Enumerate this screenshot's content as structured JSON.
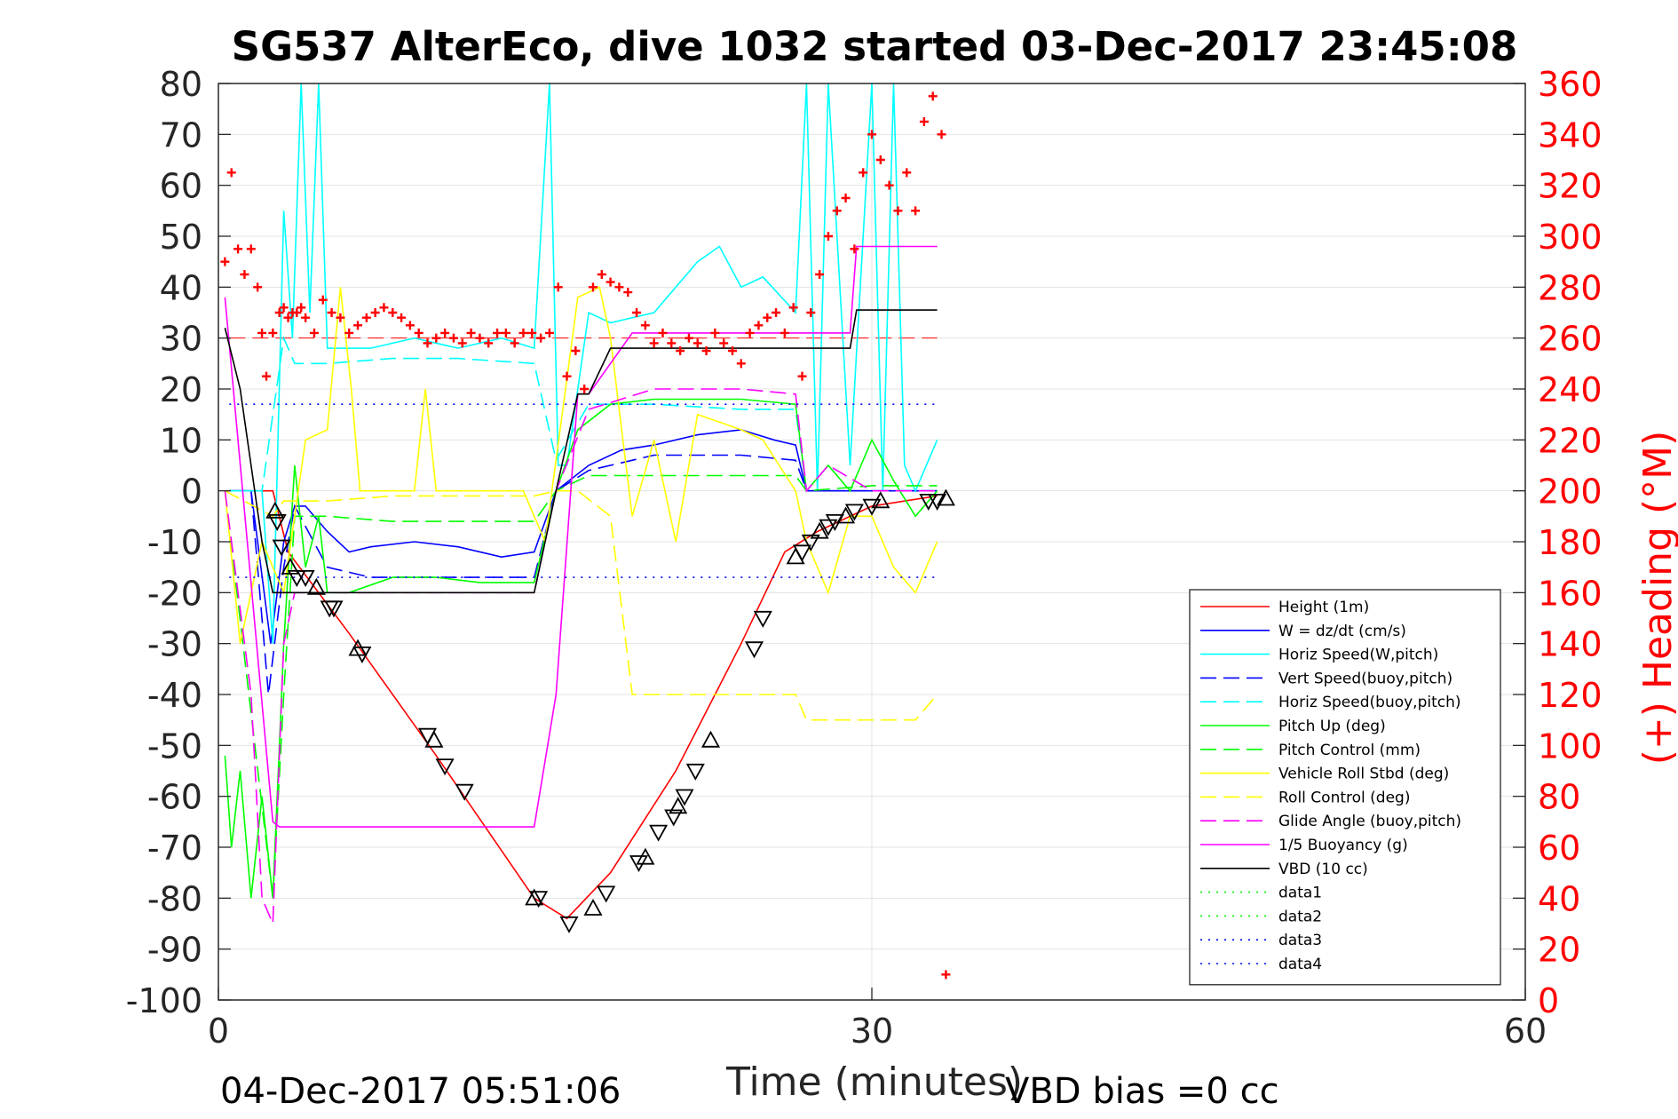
{
  "chart_data": {
    "type": "line",
    "title": "SG537 AlterEco, dive 1032 started 03-Dec-2017 23:45:08",
    "xlabel": "Time (minutes)",
    "ylabel": "",
    "y2label": "(+) Heading (°M)",
    "xlim": [
      0,
      60
    ],
    "ylim": [
      -100,
      80
    ],
    "y2lim": [
      0,
      360
    ],
    "xticks": [
      "0",
      "30",
      "60"
    ],
    "yticks": [
      "80",
      "70",
      "60",
      "50",
      "40",
      "30",
      "20",
      "10",
      "0",
      "-10",
      "-20",
      "-30",
      "-40",
      "-50",
      "-60",
      "-70",
      "-80",
      "-90",
      "-100"
    ],
    "y2ticks": [
      "360",
      "340",
      "320",
      "300",
      "280",
      "260",
      "240",
      "220",
      "200",
      "180",
      "160",
      "140",
      "120",
      "100",
      "80",
      "60",
      "40",
      "20",
      "0"
    ],
    "grid": true,
    "legend_position": "bottom-right",
    "footer_left": "04-Dec-2017 05:51:06",
    "footer_right": "VBD bias =0 cc",
    "colors": {
      "height": "#ff0000",
      "w": "#0000ff",
      "horiz": "#00ffff",
      "pitch": "#00ff00",
      "roll": "#ffff00",
      "glide": "#ff00ff",
      "vbd": "#000000",
      "heading": "#ff0000",
      "right_axis": "#ff0000"
    },
    "series": [
      {
        "name": "Height (1m)",
        "color": "#ff0000",
        "dash": "",
        "width": 1,
        "x": [
          0.3,
          2.5,
          3.2,
          6,
          10,
          14.5,
          16,
          18,
          21,
          24,
          26,
          27.5,
          30,
          33
        ],
        "y": [
          0,
          0,
          -12,
          -28,
          -52,
          -80,
          -84,
          -75,
          -55,
          -30,
          -12,
          -8,
          -3,
          -1
        ]
      },
      {
        "name": "W = dz/dt (cm/s)",
        "color": "#0000ff",
        "dash": "",
        "width": 1,
        "x": [
          0.5,
          1.5,
          2.4,
          3,
          3.5,
          4,
          5,
          6,
          7,
          9,
          11,
          13,
          14.5,
          15.5,
          17,
          18.5,
          20,
          22,
          24,
          25.5,
          26.5,
          27,
          28,
          29,
          30,
          32,
          33
        ],
        "y": [
          0,
          0,
          -30,
          -10,
          -3,
          -3,
          -8,
          -12,
          -11,
          -10,
          -11,
          -13,
          -12,
          0,
          5,
          8,
          9,
          11,
          12,
          10,
          9,
          0,
          0,
          0,
          0,
          0,
          0
        ]
      },
      {
        "name": "Horiz Speed(W,pitch)",
        "color": "#00ffff",
        "dash": "",
        "width": 1,
        "x": [
          0.5,
          2,
          2.5,
          3,
          3.4,
          3.8,
          4.2,
          4.6,
          5,
          7,
          9,
          11,
          13,
          14.5,
          15.2,
          15.6,
          16,
          17,
          18,
          20,
          21,
          22,
          23,
          24,
          25,
          26.5,
          27,
          27.5,
          28,
          29,
          30,
          30.5,
          31,
          31.5,
          32,
          33
        ],
        "y": [
          0,
          0,
          -30,
          55,
          30,
          80,
          35,
          80,
          28,
          28,
          30,
          28,
          30,
          28,
          80,
          5,
          5,
          35,
          33,
          35,
          40,
          45,
          48,
          40,
          42,
          35,
          80,
          0,
          80,
          5,
          80,
          0,
          80,
          5,
          0,
          10
        ]
      },
      {
        "name": "Vert Speed(buoy,pitch)",
        "color": "#0000ff",
        "dash": "18,8",
        "width": 1,
        "x": [
          0.5,
          1.5,
          2.3,
          3,
          3.5,
          5,
          7,
          10,
          13,
          14.5,
          15.5,
          17,
          20,
          24,
          26.5,
          27,
          30,
          33
        ],
        "y": [
          0,
          0,
          -40,
          -15,
          -3,
          -15,
          -17,
          -17,
          -17,
          -17,
          0,
          4,
          7,
          7,
          6,
          0,
          0,
          0
        ]
      },
      {
        "name": "Horiz Speed(buoy,pitch)",
        "color": "#00ffff",
        "dash": "18,8",
        "width": 1,
        "x": [
          0.5,
          2,
          3,
          3.5,
          5,
          8,
          11,
          14.5,
          15.5,
          17,
          20,
          24,
          26.5,
          27,
          28,
          30,
          33
        ],
        "y": [
          0,
          0,
          30,
          25,
          25,
          26,
          26,
          25,
          6,
          17,
          17,
          16,
          16,
          0,
          5,
          0,
          0
        ]
      },
      {
        "name": "Pitch Up (deg)",
        "color": "#00ff00",
        "dash": "",
        "width": 1,
        "x": [
          0.3,
          0.6,
          1,
          1.5,
          2,
          2.5,
          3,
          3.5,
          4,
          4.6,
          5,
          6,
          8,
          10,
          12,
          14.5,
          15.5,
          16.5,
          18,
          20,
          22,
          24,
          26.5,
          27,
          28,
          29,
          30,
          31,
          32,
          33
        ],
        "y": [
          -52,
          -70,
          -55,
          -80,
          -60,
          -80,
          -30,
          5,
          -15,
          -5,
          -20,
          -20,
          -17,
          -17,
          -18,
          -18,
          0,
          12,
          17,
          18,
          18,
          18,
          17,
          0,
          5,
          0,
          10,
          2,
          -5,
          0
        ]
      },
      {
        "name": "Pitch Control (mm)",
        "color": "#00ff00",
        "dash": "18,8",
        "width": 1,
        "x": [
          0.3,
          2.5,
          3,
          3.5,
          5,
          8,
          11,
          14.5,
          15.5,
          17,
          20,
          24,
          26.5,
          27,
          30,
          33
        ],
        "y": [
          0,
          -80,
          -40,
          -5,
          -5,
          -6,
          -6,
          -6,
          0,
          3,
          3,
          3,
          3,
          0,
          1,
          1
        ]
      },
      {
        "name": "Vehicle Roll Stbd (deg)",
        "color": "#ffff00",
        "dash": "",
        "width": 1,
        "x": [
          0.3,
          1,
          2,
          3,
          4,
          5,
          5.6,
          6.1,
          6.5,
          8,
          9,
          9.5,
          10,
          11,
          14,
          15,
          16.5,
          17.5,
          18,
          19,
          20,
          21,
          22,
          24,
          25,
          26.5,
          27,
          28,
          29,
          30,
          31,
          32,
          33
        ],
        "y": [
          0,
          -30,
          -10,
          -20,
          10,
          12,
          40,
          20,
          0,
          0,
          0,
          20,
          0,
          0,
          0,
          -10,
          38,
          40,
          30,
          -5,
          10,
          -10,
          15,
          12,
          10,
          0,
          -10,
          -20,
          -5,
          -5,
          -15,
          -20,
          -10
        ]
      },
      {
        "name": "Roll Control (deg)",
        "color": "#ffff00",
        "dash": "18,8",
        "width": 1,
        "x": [
          0.3,
          2.5,
          3,
          5,
          8,
          11,
          14.5,
          15.5,
          16.5,
          18,
          19,
          20,
          22,
          24,
          25,
          26.5,
          27,
          28,
          30,
          31,
          32,
          33
        ],
        "y": [
          0,
          -5,
          -2,
          -2,
          -1,
          -1,
          -1,
          0,
          0,
          -5,
          -40,
          -40,
          -40,
          -40,
          -40,
          -40,
          -45,
          -45,
          -45,
          -45,
          -45,
          -40
        ]
      },
      {
        "name": "Glide Angle (buoy,pitch)",
        "color": "#ff00ff",
        "dash": "18,8",
        "width": 1,
        "x": [
          0.3,
          1.5,
          2,
          2.5,
          3,
          3.5,
          5,
          8,
          11,
          14.5,
          15.5,
          17,
          20,
          24,
          26.5,
          27,
          28,
          30,
          33
        ],
        "y": [
          0,
          -40,
          -80,
          -85,
          -30,
          -20,
          -20,
          -20,
          -20,
          -20,
          0,
          16,
          20,
          20,
          19,
          0,
          5,
          0,
          0
        ]
      },
      {
        "name": "1/5 Buoyancy (g)",
        "color": "#ff00ff",
        "dash": "",
        "width": 1,
        "x": [
          0.3,
          2.5,
          2.8,
          5,
          10,
          14.5,
          15.5,
          16.5,
          17,
          19,
          22,
          24,
          26.5,
          27,
          29,
          29.3,
          33
        ],
        "y": [
          38,
          -65,
          -66,
          -66,
          -66,
          -66,
          -40,
          19,
          19,
          31,
          31,
          31,
          31,
          31,
          31,
          48,
          48
        ]
      },
      {
        "name": "VBD (10 cc)",
        "color": "#000000",
        "dash": "",
        "width": 1,
        "x": [
          0.3,
          1,
          2,
          2.5,
          3,
          5,
          10,
          14.5,
          15,
          15.5,
          16.5,
          17,
          18,
          19,
          22,
          24,
          26.5,
          29,
          29.3,
          33
        ],
        "y": [
          32,
          20,
          -10,
          -20,
          -20,
          -20,
          -20,
          -20,
          -10,
          0,
          19,
          19,
          28,
          28,
          28,
          28,
          28,
          28,
          35.5,
          35.5
        ]
      },
      {
        "name": "data1",
        "color": "#00ff00",
        "dash": "2,7",
        "width": 1,
        "x": [
          0,
          0
        ],
        "y": [
          0,
          0
        ]
      },
      {
        "name": "data2",
        "color": "#00ff00",
        "dash": "2,7",
        "width": 1,
        "x": [
          0,
          0
        ],
        "y": [
          0,
          0
        ]
      },
      {
        "name": "data3",
        "color": "#0000ff",
        "dash": "2,7",
        "width": 1,
        "x": [
          0.5,
          33
        ],
        "y": [
          17,
          17
        ]
      },
      {
        "name": "data4",
        "color": "#0000ff",
        "dash": "2,7",
        "width": 1,
        "x": [
          0.5,
          33
        ],
        "y": [
          -17,
          -17
        ]
      }
    ],
    "heading_ref_x": [
      0.5,
      33
    ],
    "heading_ref_y": [
      260,
      260
    ],
    "triangles": {
      "x": [
        2.6,
        2.7,
        2.9,
        3.3,
        3.6,
        4.0,
        4.5,
        5.1,
        5.3,
        6.4,
        6.6,
        9.6,
        9.9,
        10.4,
        11.3,
        14.5,
        14.7,
        16.1,
        17.2,
        17.8,
        19.3,
        19.6,
        20.2,
        20.9,
        21.1,
        21.4,
        21.9,
        22.6,
        24.6,
        25.0,
        26.5,
        26.8,
        27.2,
        27.6,
        28.0,
        28.3,
        28.8,
        29.2,
        30.0,
        30.4,
        32.6,
        33.0,
        33.4
      ],
      "y": [
        -4,
        -6,
        -11,
        -15,
        -17,
        -17,
        -19,
        -23,
        -23,
        -31,
        -32,
        -48,
        -49,
        -54,
        -59,
        -80,
        -80,
        -85,
        -82,
        -79,
        -73,
        -72,
        -67,
        -64,
        -62,
        -60,
        -55,
        -49,
        -31,
        -25,
        -13,
        -12,
        -10,
        -8,
        -7,
        -6,
        -5,
        -4,
        -3,
        -2,
        -2,
        -2,
        -1.5
      ]
    },
    "heading": {
      "x": [
        0.3,
        0.6,
        0.9,
        1.2,
        1.5,
        1.8,
        2.0,
        2.2,
        2.5,
        2.8,
        3.0,
        3.2,
        3.4,
        3.6,
        3.8,
        4.0,
        4.4,
        4.8,
        5.2,
        5.6,
        6.0,
        6.4,
        6.8,
        7.2,
        7.6,
        8.0,
        8.4,
        8.8,
        9.2,
        9.6,
        10.0,
        10.4,
        10.8,
        11.2,
        11.6,
        12.0,
        12.4,
        12.8,
        13.2,
        13.6,
        14.0,
        14.4,
        14.8,
        15.2,
        15.6,
        16.0,
        16.4,
        16.8,
        17.2,
        17.6,
        18.0,
        18.4,
        18.8,
        19.2,
        19.6,
        20.0,
        20.4,
        20.8,
        21.2,
        21.6,
        22.0,
        22.4,
        22.8,
        23.2,
        23.6,
        24.0,
        24.4,
        24.8,
        25.2,
        25.6,
        26.0,
        26.4,
        26.8,
        27.2,
        27.6,
        28.0,
        28.4,
        28.8,
        29.2,
        29.6,
        30.0,
        30.4,
        30.8,
        31.2,
        31.6,
        32.0,
        32.4,
        32.8,
        33.2,
        33.4
      ],
      "y": [
        290,
        325,
        295,
        285,
        295,
        280,
        262,
        245,
        262,
        270,
        272,
        268,
        270,
        270,
        272,
        268,
        262,
        275,
        270,
        268,
        262,
        265,
        268,
        270,
        272,
        270,
        268,
        265,
        262,
        258,
        260,
        262,
        260,
        258,
        262,
        260,
        258,
        262,
        262,
        258,
        262,
        262,
        260,
        262,
        280,
        245,
        255,
        240,
        280,
        285,
        282,
        280,
        278,
        270,
        265,
        258,
        262,
        258,
        255,
        260,
        258,
        255,
        262,
        258,
        255,
        250,
        262,
        265,
        268,
        270,
        262,
        272,
        245,
        270,
        285,
        300,
        310,
        315,
        295,
        325,
        340,
        330,
        320,
        310,
        325,
        310,
        345,
        355,
        340,
        10
      ]
    }
  }
}
